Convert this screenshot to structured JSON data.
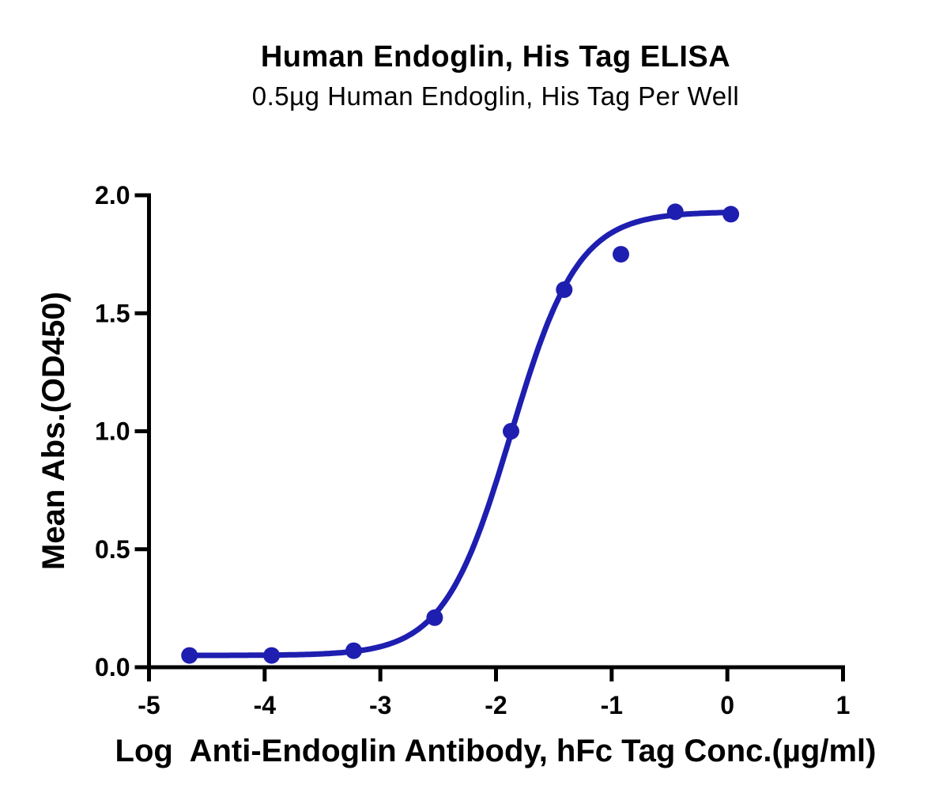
{
  "chart_data": {
    "type": "scatter",
    "title": "Human Endoglin, His Tag ELISA",
    "subtitle": "0.5µg Human Endoglin, His Tag Per Well",
    "xlabel": "Log  Anti-Endoglin Antibody, hFc Tag Conc.(µg/ml)",
    "ylabel": "Mean Abs.(OD450)",
    "xlim": [
      -5,
      1
    ],
    "ylim": [
      0.0,
      2.0
    ],
    "x_ticks": [
      -5,
      -4,
      -3,
      -2,
      -1,
      0,
      1
    ],
    "x_tick_labels": [
      "-5",
      "-4",
      "-3",
      "-2",
      "-1",
      "0",
      "1"
    ],
    "y_ticks": [
      0.0,
      0.5,
      1.0,
      1.5,
      2.0
    ],
    "y_tick_labels": [
      "0.0",
      "0.5",
      "1.0",
      "1.5",
      "2.0"
    ],
    "grid": false,
    "legend": null,
    "series": [
      {
        "name": "Anti-Endoglin Antibody, hFc Tag",
        "marker": "circle",
        "color": "#1e1eb0",
        "x": [
          -4.65,
          -3.94,
          -3.23,
          -2.53,
          -1.87,
          -1.41,
          -0.92,
          -0.45,
          0.03
        ],
        "y": [
          0.05,
          0.05,
          0.07,
          0.21,
          1.0,
          1.6,
          1.75,
          1.93,
          1.92
        ],
        "fit_curve": {
          "model": "4PL-sigmoid",
          "bottom": 0.05,
          "top": 1.93,
          "logEC50": -1.87,
          "hill_slope": 1.5,
          "x_start": -4.65,
          "x_end": 0.03
        }
      }
    ]
  },
  "colors": {
    "series_blue": "#1e1eb0",
    "axis_black": "#000000",
    "background": "#ffffff"
  }
}
